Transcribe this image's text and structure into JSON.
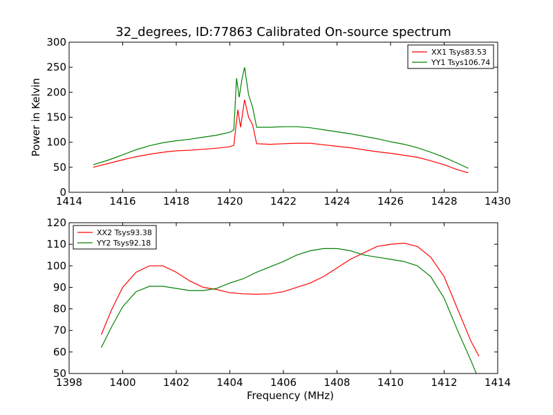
{
  "figure_title": "32_degrees, ID:77863 Calibrated On-source spectrum",
  "chart_data": [
    {
      "type": "line",
      "title": "32_degrees, ID:77863 Calibrated On-source spectrum",
      "xlabel": "",
      "ylabel": "Power in Kelvin",
      "xlim": [
        1414,
        1430
      ],
      "ylim": [
        0,
        300
      ],
      "xticks": [
        1414,
        1416,
        1418,
        1420,
        1422,
        1424,
        1426,
        1428,
        1430
      ],
      "yticks": [
        0,
        50,
        100,
        150,
        200,
        250,
        300
      ],
      "grid": false,
      "legend_position": "top-right",
      "series": [
        {
          "name": "XX1 Tsys83.53",
          "color": "#ff0000",
          "points": [
            [
              1414.9,
              50
            ],
            [
              1415.5,
              58
            ],
            [
              1416,
              65
            ],
            [
              1416.5,
              71
            ],
            [
              1417,
              76
            ],
            [
              1417.5,
              80
            ],
            [
              1418,
              83
            ],
            [
              1418.5,
              84
            ],
            [
              1419,
              86
            ],
            [
              1419.5,
              88
            ],
            [
              1420,
              91
            ],
            [
              1420.15,
              94
            ],
            [
              1420.3,
              165
            ],
            [
              1420.4,
              130
            ],
            [
              1420.55,
              185
            ],
            [
              1420.7,
              150
            ],
            [
              1420.85,
              135
            ],
            [
              1421,
              97
            ],
            [
              1421.5,
              96
            ],
            [
              1422,
              97
            ],
            [
              1422.5,
              98
            ],
            [
              1423,
              98
            ],
            [
              1423.5,
              95
            ],
            [
              1424,
              92
            ],
            [
              1424.5,
              89
            ],
            [
              1425,
              85
            ],
            [
              1425.5,
              81
            ],
            [
              1426,
              78
            ],
            [
              1426.5,
              74
            ],
            [
              1427,
              70
            ],
            [
              1427.5,
              63
            ],
            [
              1428,
              55
            ],
            [
              1428.5,
              45
            ],
            [
              1428.9,
              39
            ]
          ]
        },
        {
          "name": "YY1 Tsys106.74",
          "color": "#008000",
          "points": [
            [
              1414.9,
              55
            ],
            [
              1415.5,
              65
            ],
            [
              1416,
              75
            ],
            [
              1416.5,
              85
            ],
            [
              1417,
              93
            ],
            [
              1417.5,
              99
            ],
            [
              1418,
              103
            ],
            [
              1418.5,
              106
            ],
            [
              1419,
              110
            ],
            [
              1419.5,
              114
            ],
            [
              1420,
              120
            ],
            [
              1420.15,
              125
            ],
            [
              1420.25,
              228
            ],
            [
              1420.35,
              190
            ],
            [
              1420.45,
              225
            ],
            [
              1420.55,
              250
            ],
            [
              1420.7,
              195
            ],
            [
              1420.85,
              170
            ],
            [
              1421,
              130
            ],
            [
              1421.5,
              130
            ],
            [
              1422,
              131
            ],
            [
              1422.5,
              131
            ],
            [
              1423,
              129
            ],
            [
              1423.5,
              125
            ],
            [
              1424,
              121
            ],
            [
              1424.5,
              117
            ],
            [
              1425,
              112
            ],
            [
              1425.5,
              107
            ],
            [
              1426,
              101
            ],
            [
              1426.5,
              96
            ],
            [
              1427,
              89
            ],
            [
              1427.5,
              80
            ],
            [
              1428,
              70
            ],
            [
              1428.5,
              58
            ],
            [
              1428.9,
              48
            ]
          ]
        }
      ]
    },
    {
      "type": "line",
      "title": "",
      "xlabel": "Frequency (MHz)",
      "ylabel": "",
      "xlim": [
        1398,
        1414
      ],
      "ylim": [
        50,
        120
      ],
      "xticks": [
        1398,
        1400,
        1402,
        1404,
        1406,
        1408,
        1410,
        1412,
        1414
      ],
      "yticks": [
        50,
        60,
        70,
        80,
        90,
        100,
        110,
        120
      ],
      "grid": false,
      "legend_position": "top-left",
      "series": [
        {
          "name": "XX2 Tsys93.38",
          "color": "#ff0000",
          "points": [
            [
              1399.2,
              68
            ],
            [
              1399.6,
              80
            ],
            [
              1400,
              90
            ],
            [
              1400.5,
              97
            ],
            [
              1401,
              100
            ],
            [
              1401.5,
              100
            ],
            [
              1402,
              97
            ],
            [
              1402.5,
              93
            ],
            [
              1403,
              90
            ],
            [
              1403.5,
              89
            ],
            [
              1404,
              87.5
            ],
            [
              1404.5,
              87
            ],
            [
              1405,
              86.8
            ],
            [
              1405.5,
              87
            ],
            [
              1406,
              88
            ],
            [
              1406.5,
              90
            ],
            [
              1407,
              92
            ],
            [
              1407.5,
              95
            ],
            [
              1408,
              99
            ],
            [
              1408.5,
              103
            ],
            [
              1409,
              106
            ],
            [
              1409.5,
              109
            ],
            [
              1410,
              110
            ],
            [
              1410.5,
              110.5
            ],
            [
              1411,
              109
            ],
            [
              1411.5,
              104
            ],
            [
              1412,
              95
            ],
            [
              1412.5,
              80
            ],
            [
              1413,
              65
            ],
            [
              1413.3,
              58
            ]
          ]
        },
        {
          "name": "YY2 Tsys92.18",
          "color": "#008000",
          "points": [
            [
              1399.2,
              62
            ],
            [
              1399.6,
              72
            ],
            [
              1400,
              81
            ],
            [
              1400.5,
              88
            ],
            [
              1401,
              90.5
            ],
            [
              1401.5,
              90.5
            ],
            [
              1402,
              89.5
            ],
            [
              1402.5,
              88.5
            ],
            [
              1403,
              88.5
            ],
            [
              1403.5,
              89.5
            ],
            [
              1404,
              92
            ],
            [
              1404.5,
              94
            ],
            [
              1405,
              97
            ],
            [
              1405.5,
              99.5
            ],
            [
              1406,
              102
            ],
            [
              1406.5,
              105
            ],
            [
              1407,
              107
            ],
            [
              1407.5,
              108
            ],
            [
              1408,
              108
            ],
            [
              1408.5,
              107
            ],
            [
              1409,
              105
            ],
            [
              1409.5,
              104
            ],
            [
              1410,
              103
            ],
            [
              1410.5,
              102
            ],
            [
              1411,
              100
            ],
            [
              1411.5,
              95
            ],
            [
              1412,
              85
            ],
            [
              1412.5,
              70
            ],
            [
              1413,
              56
            ],
            [
              1413.2,
              50
            ]
          ]
        }
      ]
    }
  ]
}
